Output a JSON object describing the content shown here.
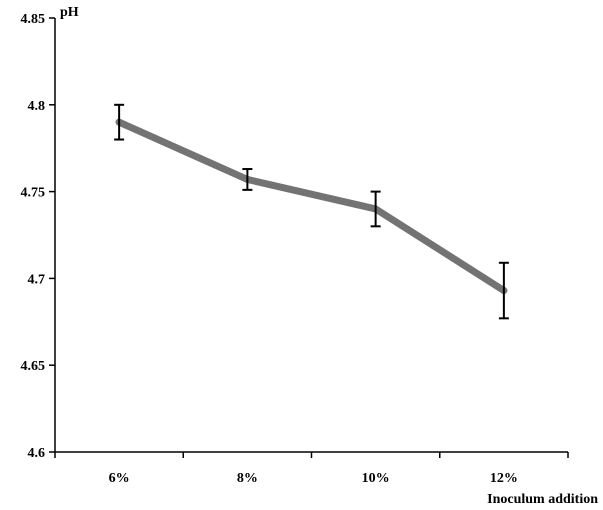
{
  "chart_data": {
    "type": "line",
    "categories": [
      "6%",
      "8%",
      "10%",
      "12%"
    ],
    "series": [
      {
        "values": [
          4.79,
          4.757,
          4.74,
          4.693
        ],
        "error": [
          0.01,
          0.006,
          0.01,
          0.016
        ]
      }
    ],
    "xlabel": "Inoculum addition",
    "ylabel": "pH",
    "ylim": [
      4.6,
      4.85
    ],
    "yticks": [
      "4.6",
      "4.65",
      "4.7",
      "4.75",
      "4.8",
      "4.85"
    ],
    "grid": false,
    "line_color": "#737373",
    "error_bar_color": "#000000"
  }
}
